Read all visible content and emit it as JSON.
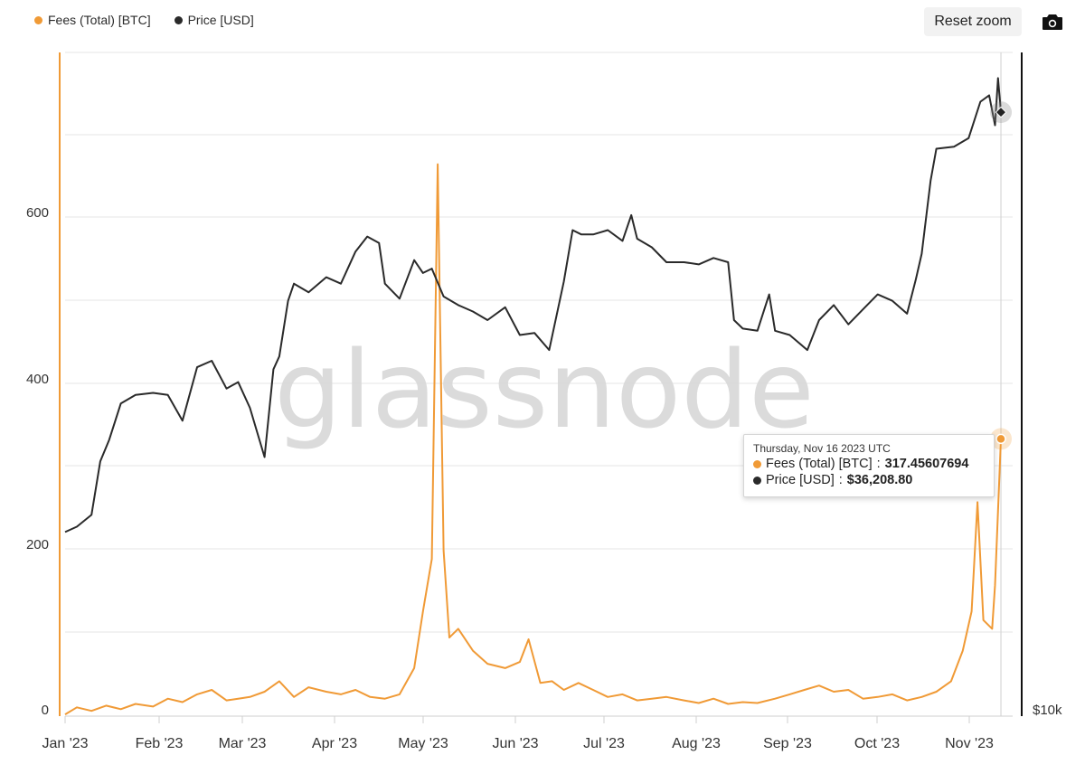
{
  "header": {
    "reset_zoom_label": "Reset zoom",
    "camera_icon": "camera-icon"
  },
  "watermark": "glassnode",
  "tooltip": {
    "date": "Thursday, Nov 16 2023 UTC",
    "fees_label": "Fees (Total) [BTC]",
    "fees_value": "317.45607694",
    "price_label": "Price [USD]",
    "price_value": "$36,208.80"
  },
  "chart_data": {
    "type": "line",
    "x_ticks": [
      "Jan '23",
      "Feb '23",
      "Mar '23",
      "Apr '23",
      "May '23",
      "Jun '23",
      "Jul '23",
      "Aug '23",
      "Sep '23",
      "Oct '23",
      "Nov '23"
    ],
    "y_left_ticks": [
      "0",
      "200",
      "400",
      "600"
    ],
    "y_right_ticks": [
      "$10k"
    ],
    "ylim_left": [
      0,
      760
    ],
    "grid": true,
    "legend_position": "top-left",
    "colors": {
      "fees": "#f09a36",
      "price": "#2a2a2a"
    },
    "series": [
      {
        "name": "Fees (Total) [BTC]",
        "axis": "left",
        "points": [
          [
            "2023-01-01",
            2
          ],
          [
            "2023-01-05",
            10
          ],
          [
            "2023-01-10",
            6
          ],
          [
            "2023-01-15",
            12
          ],
          [
            "2023-01-20",
            8
          ],
          [
            "2023-01-25",
            14
          ],
          [
            "2023-01-31",
            11
          ],
          [
            "2023-02-05",
            20
          ],
          [
            "2023-02-10",
            16
          ],
          [
            "2023-02-15",
            25
          ],
          [
            "2023-02-20",
            30
          ],
          [
            "2023-02-25",
            18
          ],
          [
            "2023-03-01",
            20
          ],
          [
            "2023-03-05",
            22
          ],
          [
            "2023-03-10",
            28
          ],
          [
            "2023-03-15",
            40
          ],
          [
            "2023-03-20",
            22
          ],
          [
            "2023-03-25",
            33
          ],
          [
            "2023-03-31",
            28
          ],
          [
            "2023-04-05",
            25
          ],
          [
            "2023-04-10",
            30
          ],
          [
            "2023-04-15",
            22
          ],
          [
            "2023-04-20",
            20
          ],
          [
            "2023-04-25",
            25
          ],
          [
            "2023-04-30",
            55
          ],
          [
            "2023-05-03",
            120
          ],
          [
            "2023-05-06",
            180
          ],
          [
            "2023-05-08",
            632
          ],
          [
            "2023-05-10",
            190
          ],
          [
            "2023-05-12",
            90
          ],
          [
            "2023-05-15",
            100
          ],
          [
            "2023-05-20",
            75
          ],
          [
            "2023-05-25",
            60
          ],
          [
            "2023-05-31",
            55
          ],
          [
            "2023-06-05",
            62
          ],
          [
            "2023-06-08",
            88
          ],
          [
            "2023-06-12",
            38
          ],
          [
            "2023-06-16",
            40
          ],
          [
            "2023-06-20",
            30
          ],
          [
            "2023-06-25",
            38
          ],
          [
            "2023-06-30",
            30
          ],
          [
            "2023-07-05",
            22
          ],
          [
            "2023-07-10",
            25
          ],
          [
            "2023-07-15",
            18
          ],
          [
            "2023-07-20",
            20
          ],
          [
            "2023-07-25",
            22
          ],
          [
            "2023-07-31",
            18
          ],
          [
            "2023-08-05",
            15
          ],
          [
            "2023-08-10",
            20
          ],
          [
            "2023-08-15",
            14
          ],
          [
            "2023-08-20",
            16
          ],
          [
            "2023-08-25",
            15
          ],
          [
            "2023-08-31",
            20
          ],
          [
            "2023-09-05",
            25
          ],
          [
            "2023-09-10",
            30
          ],
          [
            "2023-09-15",
            35
          ],
          [
            "2023-09-20",
            28
          ],
          [
            "2023-09-25",
            30
          ],
          [
            "2023-09-30",
            20
          ],
          [
            "2023-10-05",
            22
          ],
          [
            "2023-10-10",
            25
          ],
          [
            "2023-10-15",
            18
          ],
          [
            "2023-10-20",
            22
          ],
          [
            "2023-10-25",
            28
          ],
          [
            "2023-10-30",
            40
          ],
          [
            "2023-11-03",
            75
          ],
          [
            "2023-11-06",
            120
          ],
          [
            "2023-11-08",
            245
          ],
          [
            "2023-11-10",
            110
          ],
          [
            "2023-11-13",
            100
          ],
          [
            "2023-11-14",
            150
          ],
          [
            "2023-11-16",
            317.45607694
          ]
        ]
      },
      {
        "name": "Price [USD]",
        "axis": "right",
        "points": [
          [
            "2023-01-01",
            16600
          ],
          [
            "2023-01-05",
            16850
          ],
          [
            "2023-01-10",
            17400
          ],
          [
            "2023-01-13",
            19900
          ],
          [
            "2023-01-16",
            20900
          ],
          [
            "2023-01-20",
            22600
          ],
          [
            "2023-01-25",
            23000
          ],
          [
            "2023-01-31",
            23100
          ],
          [
            "2023-02-05",
            23000
          ],
          [
            "2023-02-10",
            21800
          ],
          [
            "2023-02-15",
            24300
          ],
          [
            "2023-02-20",
            24600
          ],
          [
            "2023-02-25",
            23300
          ],
          [
            "2023-03-01",
            23600
          ],
          [
            "2023-03-05",
            22400
          ],
          [
            "2023-03-10",
            20100
          ],
          [
            "2023-03-13",
            24200
          ],
          [
            "2023-03-15",
            24800
          ],
          [
            "2023-03-18",
            27400
          ],
          [
            "2023-03-20",
            28200
          ],
          [
            "2023-03-25",
            27800
          ],
          [
            "2023-03-31",
            28500
          ],
          [
            "2023-04-05",
            28200
          ],
          [
            "2023-04-10",
            29700
          ],
          [
            "2023-04-14",
            30400
          ],
          [
            "2023-04-18",
            30100
          ],
          [
            "2023-04-20",
            28200
          ],
          [
            "2023-04-25",
            27500
          ],
          [
            "2023-04-30",
            29300
          ],
          [
            "2023-05-03",
            28700
          ],
          [
            "2023-05-06",
            28900
          ],
          [
            "2023-05-10",
            27600
          ],
          [
            "2023-05-15",
            27200
          ],
          [
            "2023-05-20",
            26900
          ],
          [
            "2023-05-25",
            26500
          ],
          [
            "2023-05-31",
            27100
          ],
          [
            "2023-06-05",
            25800
          ],
          [
            "2023-06-10",
            25900
          ],
          [
            "2023-06-15",
            25100
          ],
          [
            "2023-06-20",
            28300
          ],
          [
            "2023-06-23",
            30700
          ],
          [
            "2023-06-26",
            30500
          ],
          [
            "2023-06-30",
            30500
          ],
          [
            "2023-07-05",
            30700
          ],
          [
            "2023-07-10",
            30200
          ],
          [
            "2023-07-13",
            31400
          ],
          [
            "2023-07-15",
            30300
          ],
          [
            "2023-07-20",
            29900
          ],
          [
            "2023-07-25",
            29200
          ],
          [
            "2023-07-31",
            29200
          ],
          [
            "2023-08-05",
            29100
          ],
          [
            "2023-08-10",
            29400
          ],
          [
            "2023-08-15",
            29200
          ],
          [
            "2023-08-17",
            26500
          ],
          [
            "2023-08-20",
            26100
          ],
          [
            "2023-08-25",
            26000
          ],
          [
            "2023-08-29",
            27700
          ],
          [
            "2023-08-31",
            26000
          ],
          [
            "2023-09-05",
            25800
          ],
          [
            "2023-09-11",
            25100
          ],
          [
            "2023-09-15",
            26500
          ],
          [
            "2023-09-20",
            27200
          ],
          [
            "2023-09-25",
            26300
          ],
          [
            "2023-09-30",
            27000
          ],
          [
            "2023-10-05",
            27700
          ],
          [
            "2023-10-10",
            27400
          ],
          [
            "2023-10-15",
            26800
          ],
          [
            "2023-10-18",
            28400
          ],
          [
            "2023-10-20",
            29600
          ],
          [
            "2023-10-23",
            33000
          ],
          [
            "2023-10-25",
            34500
          ],
          [
            "2023-10-31",
            34600
          ],
          [
            "2023-11-05",
            35000
          ],
          [
            "2023-11-09",
            36700
          ],
          [
            "2023-11-12",
            37000
          ],
          [
            "2023-11-14",
            35600
          ],
          [
            "2023-11-15",
            37800
          ],
          [
            "2023-11-16",
            36208.8
          ]
        ]
      }
    ]
  }
}
